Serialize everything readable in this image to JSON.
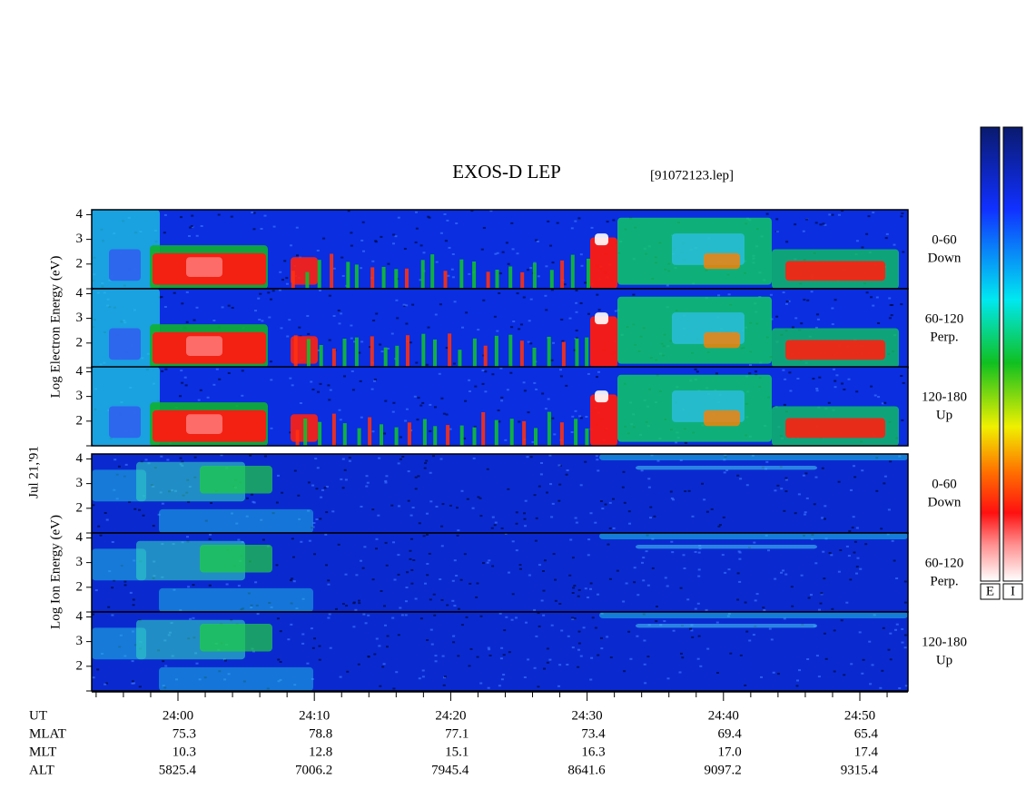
{
  "chart_data": {
    "type": "spectrogram",
    "title": "EXOS-D LEP",
    "subtitle": "[91072123.lep]",
    "date": "Jul 21,'91",
    "electron_label": "Log Electron Energy (eV)",
    "ion_label": "Log Ion Energy (eV)",
    "ylim": [
      1,
      4.2
    ],
    "yticks": [
      1,
      2,
      3,
      4
    ],
    "panels": [
      {
        "species": "electron",
        "angle": "0-60",
        "direction": "Down"
      },
      {
        "species": "electron",
        "angle": "60-120",
        "direction": "Perp."
      },
      {
        "species": "electron",
        "angle": "120-180",
        "direction": "Up"
      },
      {
        "species": "ion",
        "angle": "0-60",
        "direction": "Down"
      },
      {
        "species": "ion",
        "angle": "60-120",
        "direction": "Perp."
      },
      {
        "species": "ion",
        "angle": "120-180",
        "direction": "Up"
      }
    ],
    "colorbars": [
      "E",
      "I"
    ],
    "ephemeris": {
      "rows": [
        {
          "name": "UT",
          "values": [
            "24:00",
            "24:10",
            "24:20",
            "24:30",
            "24:40",
            "24:50"
          ]
        },
        {
          "name": "MLAT",
          "values": [
            "75.3",
            "78.8",
            "77.1",
            "73.4",
            "69.4",
            "65.4"
          ]
        },
        {
          "name": "MLT",
          "values": [
            "10.3",
            "12.8",
            "15.1",
            "16.3",
            "17.0",
            "17.4"
          ]
        },
        {
          "name": "ALT",
          "values": [
            "5825.4",
            "7006.2",
            "7945.4",
            "8641.6",
            "9097.2",
            "9315.4"
          ]
        }
      ]
    }
  }
}
